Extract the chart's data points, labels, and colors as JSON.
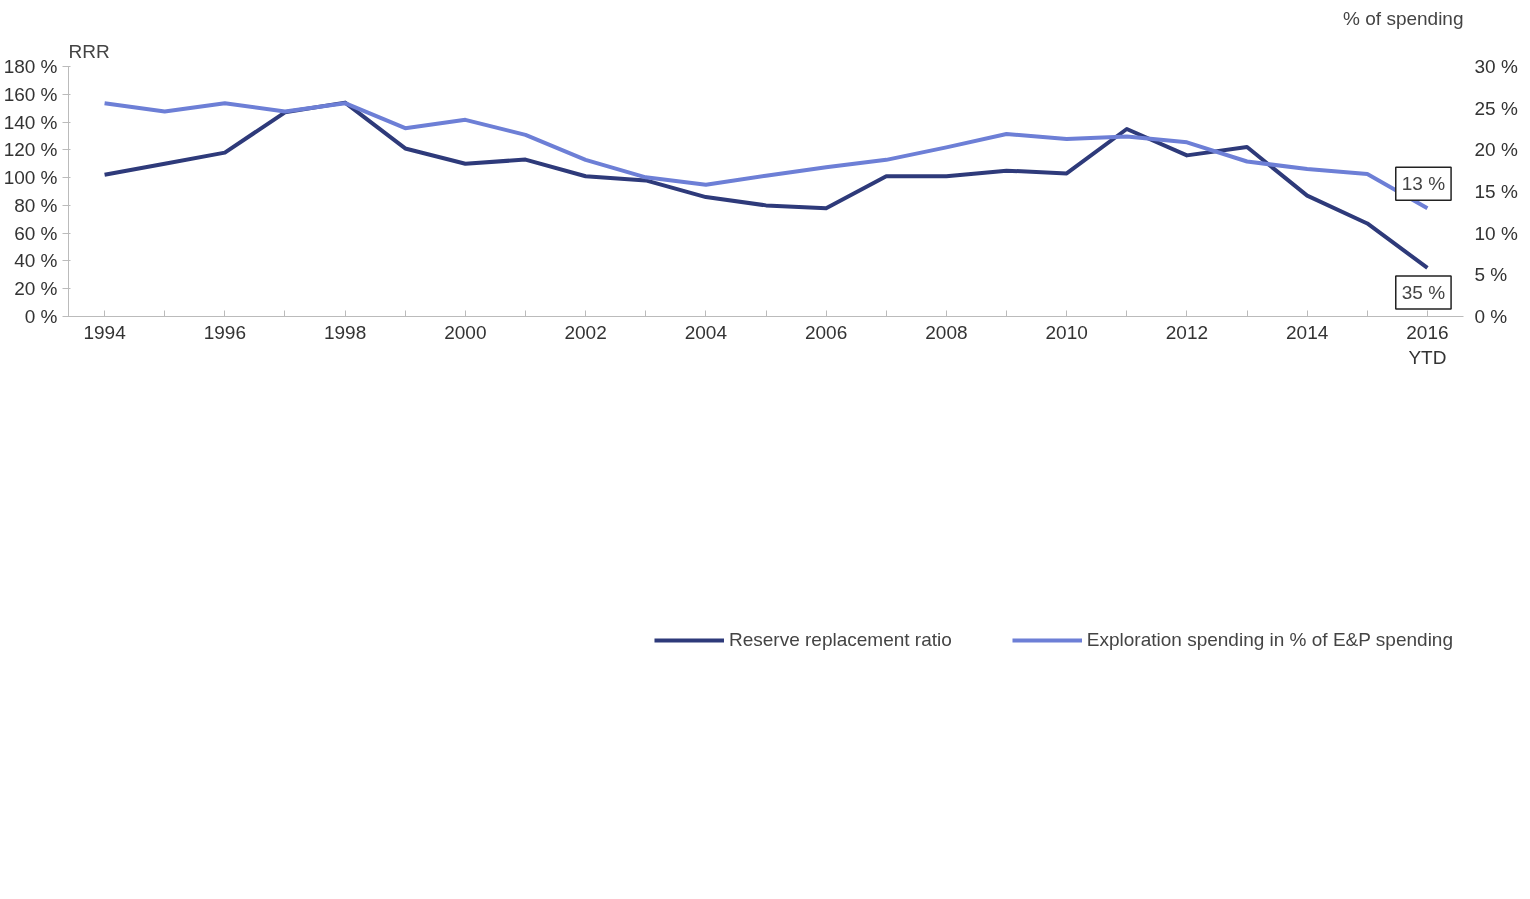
{
  "chart_data": {
    "type": "line",
    "ylabel": "RRR",
    "y2label": "% of spending",
    "x": [
      1994,
      1995,
      1996,
      1997,
      1998,
      1999,
      2000,
      2001,
      2002,
      2003,
      2004,
      2005,
      2006,
      2007,
      2008,
      2009,
      2010,
      2011,
      2012,
      2013,
      2014,
      2015,
      2016
    ],
    "series": [
      {
        "name": "Reserve replacement ratio",
        "color": "#2e3a7a",
        "values": [
          102,
          110,
          118,
          147,
          154,
          121,
          110,
          113,
          101,
          98,
          86,
          80,
          78,
          101,
          101,
          105,
          103,
          135,
          116,
          122,
          87,
          67,
          35
        ],
        "value_labels": [
          null,
          null,
          null,
          null,
          null,
          null,
          null,
          null,
          null,
          null,
          null,
          null,
          null,
          null,
          null,
          null,
          null,
          null,
          null,
          null,
          null,
          null,
          "35 %"
        ]
      },
      {
        "name": "Exploration spending in % of E&P spending",
        "color": "#6d7fd6",
        "axis": "y2",
        "values": [
          25.6,
          24.6,
          25.6,
          24.6,
          25.6,
          22.6,
          23.6,
          21.8,
          18.8,
          16.7,
          15.8,
          16.9,
          17.9,
          18.8,
          20.3,
          21.9,
          21.3,
          21.6,
          20.9,
          18.6,
          17.7,
          17.1,
          13
        ],
        "value_labels": [
          null,
          null,
          null,
          null,
          null,
          null,
          null,
          null,
          null,
          null,
          null,
          null,
          null,
          null,
          null,
          null,
          null,
          null,
          null,
          null,
          null,
          null,
          "13 %"
        ]
      }
    ],
    "xlim": [
      1993.4,
      2016.6
    ],
    "xticks": [
      {
        "value": 1994,
        "label": "1994"
      },
      {
        "value": 1995,
        "label": null
      },
      {
        "value": 1996,
        "label": "1996"
      },
      {
        "value": 1997,
        "label": null
      },
      {
        "value": 1998,
        "label": "1998"
      },
      {
        "value": 1999,
        "label": null
      },
      {
        "value": 2000,
        "label": "2000"
      },
      {
        "value": 2001,
        "label": null
      },
      {
        "value": 2002,
        "label": "2002"
      },
      {
        "value": 2003,
        "label": null
      },
      {
        "value": 2004,
        "label": "2004"
      },
      {
        "value": 2005,
        "label": null
      },
      {
        "value": 2006,
        "label": "2006"
      },
      {
        "value": 2007,
        "label": null
      },
      {
        "value": 2008,
        "label": "2008"
      },
      {
        "value": 2009,
        "label": null
      },
      {
        "value": 2010,
        "label": "2010"
      },
      {
        "value": 2011,
        "label": null
      },
      {
        "value": 2012,
        "label": "2012"
      },
      {
        "value": 2013,
        "label": null
      },
      {
        "value": 2014,
        "label": "2014"
      },
      {
        "value": 2015,
        "label": null
      },
      {
        "value": 2016,
        "label": "2016\nYTD"
      }
    ],
    "ylim": [
      0,
      180
    ],
    "yticks": [
      {
        "value": 0,
        "label": "0 %"
      },
      {
        "value": 20,
        "label": "20 %"
      },
      {
        "value": 40,
        "label": "40 %"
      },
      {
        "value": 60,
        "label": "60 %"
      },
      {
        "value": 80,
        "label": "80 %"
      },
      {
        "value": 100,
        "label": "100 %"
      },
      {
        "value": 120,
        "label": "120 %"
      },
      {
        "value": 140,
        "label": "140 %"
      },
      {
        "value": 160,
        "label": "160 %"
      },
      {
        "value": 180,
        "label": "180 %"
      }
    ],
    "y2lim": [
      0,
      30
    ],
    "y2ticks": [
      {
        "value": 0,
        "label": "0 %"
      },
      {
        "value": 5,
        "label": "5 %"
      },
      {
        "value": 10,
        "label": "10 %"
      },
      {
        "value": 15,
        "label": "15 %"
      },
      {
        "value": 20,
        "label": "20 %"
      },
      {
        "value": 25,
        "label": "25 %"
      },
      {
        "value": 30,
        "label": "30 %"
      }
    ],
    "grid": false,
    "legend": "bottom",
    "marker": "none",
    "line_style": "solid"
  }
}
